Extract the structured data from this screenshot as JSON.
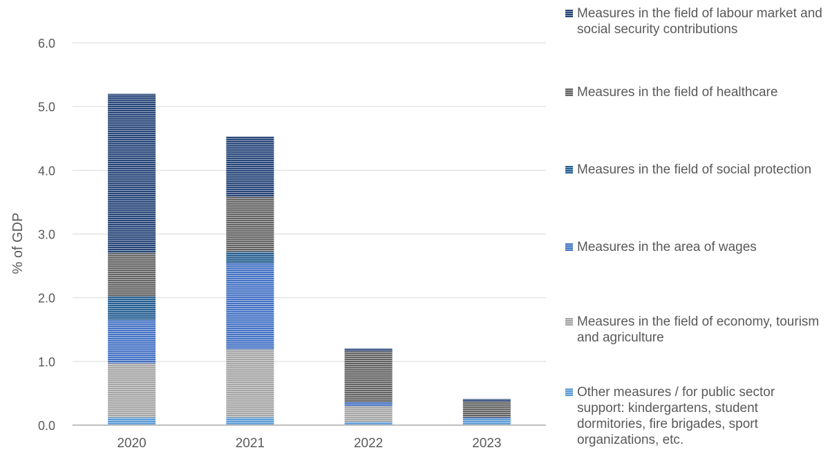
{
  "chart_data": {
    "type": "bar",
    "stacked": true,
    "categories": [
      "2020",
      "2021",
      "2022",
      "2023"
    ],
    "ylabel": "% of GDP",
    "xlabel": "",
    "ylim": [
      0,
      6.0
    ],
    "yticks": [
      "0.0",
      "1.0",
      "2.0",
      "3.0",
      "4.0",
      "5.0",
      "6.0"
    ],
    "grid": true,
    "legend_position": "right",
    "series": [
      {
        "name": "Other measures / for public sector support: kindergartens, student dormitories, fire brigades, sport organizations, etc.",
        "color": "#5b9bd5",
        "values": [
          0.12,
          0.12,
          0.05,
          0.1
        ]
      },
      {
        "name": "Measures in the field of economy, tourism and agriculture",
        "color": "#a5a5a5",
        "values": [
          0.85,
          1.07,
          0.25,
          0.0
        ]
      },
      {
        "name": "Measures in the area of wages",
        "color": "#4472c4",
        "values": [
          0.68,
          1.35,
          0.06,
          0.02
        ]
      },
      {
        "name": "Measures in the field of social protection",
        "color": "#255e91",
        "values": [
          0.37,
          0.18,
          0.0,
          0.0
        ]
      },
      {
        "name": "Measures in the field of healthcare",
        "color": "#636363",
        "values": [
          0.68,
          0.86,
          0.8,
          0.25
        ]
      },
      {
        "name": "Measures in the field of labour market and social security contributions",
        "color": "#264478",
        "values": [
          2.5,
          0.95,
          0.04,
          0.04
        ]
      }
    ]
  },
  "legend": {
    "items": [
      {
        "label": "Measures in the field of labour market and social security contributions",
        "color": "#264478"
      },
      {
        "label": "Measures in the field of healthcare",
        "color": "#636363"
      },
      {
        "label": "Measures in the field of social protection",
        "color": "#255e91"
      },
      {
        "label": "Measures in the area of wages",
        "color": "#4472c4"
      },
      {
        "label": "Measures in the field of economy, tourism and agriculture",
        "color": "#a5a5a5"
      },
      {
        "label": "Other measures / for public sector support: kindergartens, student dormitories, fire brigades, sport organizations, etc.",
        "color": "#5b9bd5"
      }
    ]
  }
}
